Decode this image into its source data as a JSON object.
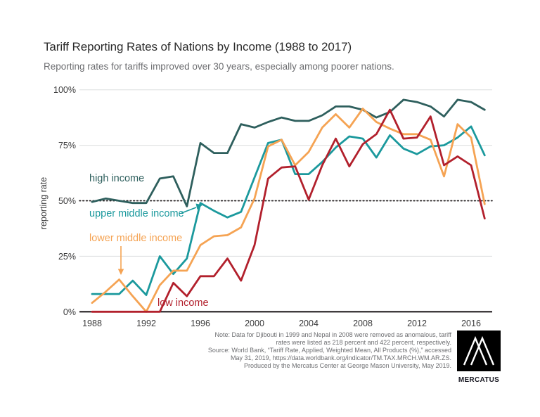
{
  "title": "Tariff Reporting Rates of Nations by Income (1988 to 2017)",
  "subtitle": "Reporting rates for tariffs improved over 30 years, especially among poorer nations.",
  "chart_data": {
    "type": "line",
    "x": [
      1988,
      1989,
      1990,
      1991,
      1992,
      1993,
      1994,
      1995,
      1996,
      1997,
      1998,
      1999,
      2000,
      2001,
      2002,
      2003,
      2004,
      2005,
      2006,
      2007,
      2008,
      2009,
      2010,
      2011,
      2012,
      2013,
      2014,
      2015,
      2016,
      2017
    ],
    "x_tick_labels": [
      "1988",
      "1992",
      "1996",
      "2000",
      "2004",
      "2008",
      "2012",
      "2016"
    ],
    "y_ticks": [
      0,
      25,
      50,
      75,
      100
    ],
    "y_tick_labels": [
      "0%",
      "25%",
      "50%",
      "75%",
      "100%"
    ],
    "ylabel": "reporting rate",
    "ylim": [
      0,
      100
    ],
    "grid_values": [
      25,
      75,
      100
    ],
    "reference_line": 50,
    "legend_position": "inline-labels",
    "series": [
      {
        "name": "high income",
        "color": "#2e5f5d",
        "values": [
          49.5,
          51,
          50,
          49,
          49,
          60,
          61,
          47.5,
          76,
          71.5,
          71.5,
          84.5,
          83,
          85.5,
          87.5,
          86,
          86,
          88.5,
          92.5,
          92.5,
          91,
          87.5,
          90,
          95.5,
          94.5,
          92.5,
          88,
          95.5,
          94.5,
          91
        ]
      },
      {
        "name": "upper middle income",
        "color": "#1b999d",
        "values": [
          8,
          8,
          8,
          14,
          7.5,
          25,
          17,
          24,
          49,
          45.5,
          42.5,
          45,
          60.5,
          76,
          77.5,
          62,
          62,
          67.5,
          74,
          79,
          78,
          69.5,
          79.5,
          73.5,
          71,
          74.5,
          75,
          78.5,
          83.5,
          70.5
        ]
      },
      {
        "name": "lower middle income",
        "color": "#f5a353",
        "values": [
          4,
          9,
          14.5,
          7,
          0,
          12,
          18.5,
          18.5,
          30,
          34,
          34.5,
          38,
          51,
          74.5,
          77.5,
          66,
          72,
          83,
          89,
          83,
          91.5,
          85.5,
          82.5,
          80,
          80,
          77.5,
          61,
          84.5,
          78.5,
          48.5
        ]
      },
      {
        "name": "low income",
        "color": "#b2202c",
        "values": [
          0,
          0,
          0,
          0,
          0,
          0,
          13,
          7,
          16,
          16,
          24,
          14,
          30,
          60,
          65,
          65.5,
          50.5,
          66,
          78,
          65.5,
          75.5,
          80,
          91,
          78,
          78.5,
          88,
          66,
          70,
          66,
          42
        ]
      }
    ]
  },
  "colors": {
    "grid": "#dcddde",
    "axis": "#231f20",
    "reference": "#231f20",
    "tick_text": "#3a3a3b"
  },
  "footer": {
    "lines": [
      "Note: Data for Djibouti in 1999 and Nepal in 2008 were removed as anomalous, tariff",
      "rates were listed as 218 percent and 422 percent, respectively.",
      "Source: World Bank, “Tariff Rate, Applied, Weighted Mean, All Products (%),” accessed",
      "May 31, 2019, https://data.worldbank.org/indicator/TM.TAX.MRCH.WM.AR.ZS.",
      "Produced by the Mercatus Center at George Mason University, May 2019."
    ],
    "logo_text": "MERCATUS"
  }
}
